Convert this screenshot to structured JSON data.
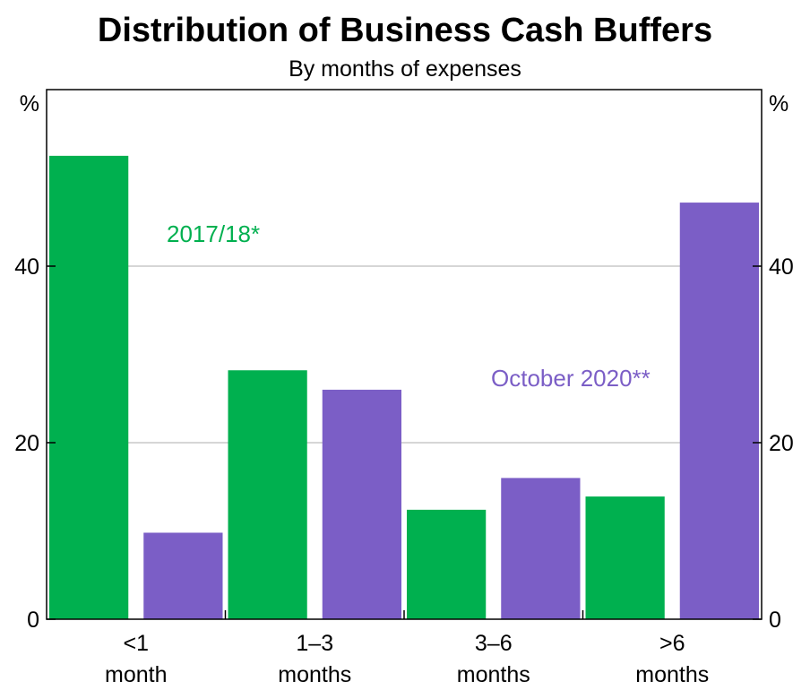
{
  "chart_data": {
    "type": "bar",
    "title": "Distribution of Business Cash Buffers",
    "subtitle": "By months of expenses",
    "y_unit_left": "%",
    "y_unit_right": "%",
    "categories": [
      [
        "<1",
        "month"
      ],
      [
        "1–3",
        "months"
      ],
      [
        "3–6",
        "months"
      ],
      [
        ">6",
        "months"
      ]
    ],
    "series": [
      {
        "name": "2017/18*",
        "color": "#00b04f",
        "values": [
          52.5,
          28.2,
          12.4,
          13.9
        ]
      },
      {
        "name": "October 2020**",
        "color": "#7b5ec6",
        "values": [
          9.8,
          26.0,
          16.0,
          47.2
        ]
      }
    ],
    "ylim": [
      0,
      60
    ],
    "yticks": [
      0,
      20,
      40
    ],
    "grid": true,
    "legend_placement": "inline labels near series"
  }
}
